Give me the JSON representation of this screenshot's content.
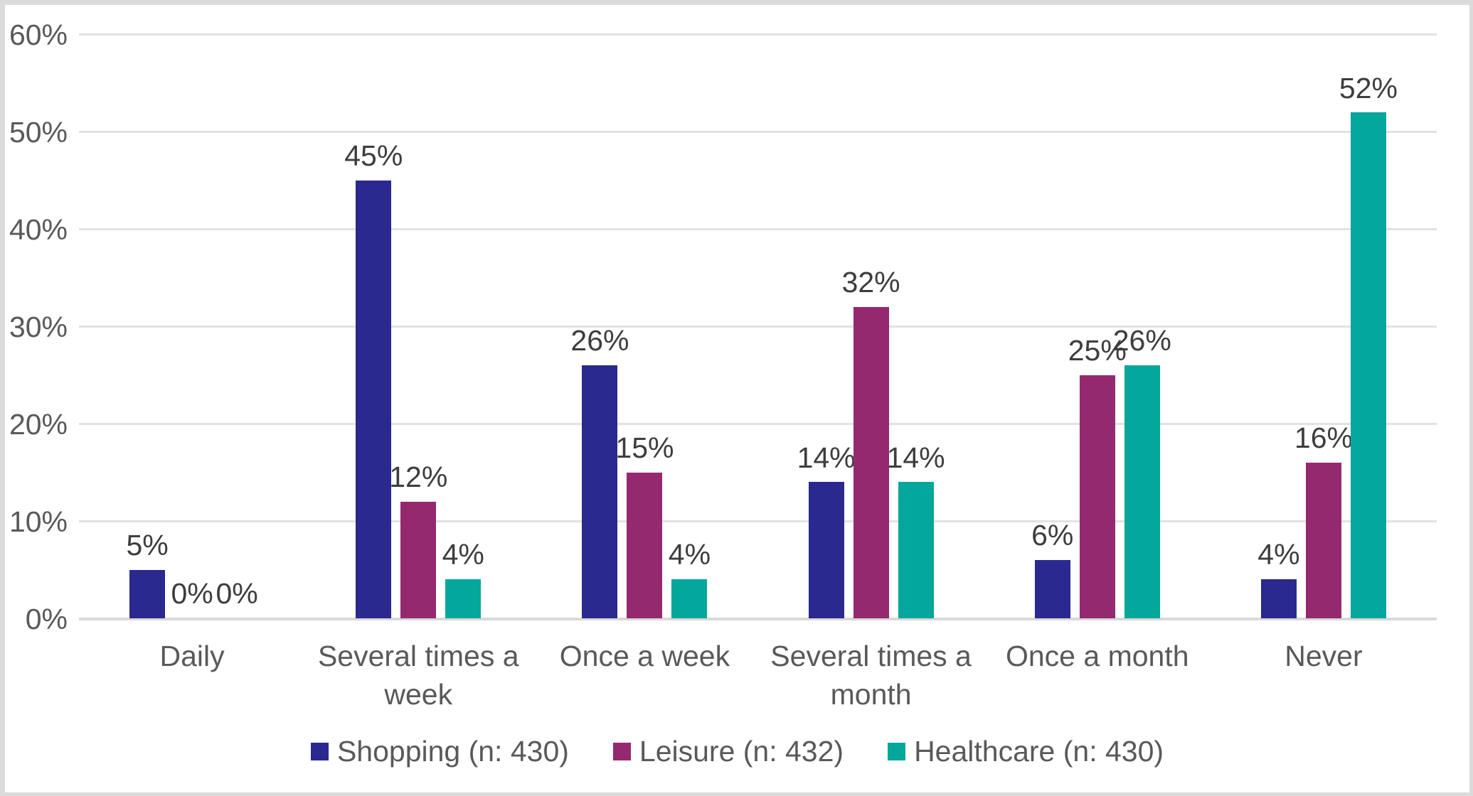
{
  "chart_data": {
    "type": "bar",
    "title": "",
    "xlabel": "",
    "ylabel": "",
    "categories": [
      "Daily",
      "Several times a\nweek",
      "Once a week",
      "Several times a\nmonth",
      "Once a month",
      "Never"
    ],
    "series": [
      {
        "name": "Shopping (n: 430)",
        "color": "#29298f",
        "values": [
          5,
          45,
          26,
          14,
          6,
          4
        ]
      },
      {
        "name": "Leisure (n: 432)",
        "color": "#952970",
        "values": [
          0,
          12,
          15,
          32,
          25,
          16
        ]
      },
      {
        "name": "Healthcare (n: 430)",
        "color": "#04a79b",
        "values": [
          0,
          4,
          4,
          14,
          26,
          52
        ]
      }
    ],
    "data_labels": [
      [
        "5%",
        "45%",
        "26%",
        "14%",
        "6%",
        "4%"
      ],
      [
        "0%",
        "12%",
        "15%",
        "32%",
        "25%",
        "16%"
      ],
      [
        "0%",
        "4%",
        "4%",
        "14%",
        "26%",
        "52%"
      ]
    ],
    "y_ticks": [
      "60%",
      "50%",
      "40%",
      "30%",
      "20%",
      "10%",
      "0%"
    ],
    "ylim": [
      0,
      60
    ],
    "y_tick_step": 10,
    "grid": true,
    "legend_position": "bottom"
  },
  "colors": {
    "gridline": "#e2e2e2",
    "baseline": "#d9d9d9",
    "axis_text": "#595959",
    "data_label_text": "#3d3d3d",
    "plot_background": "#ffffff",
    "frame_background": "#dbdbdb"
  }
}
